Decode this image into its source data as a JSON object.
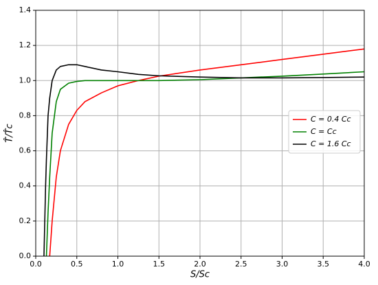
{
  "chart_data": {
    "type": "line",
    "xlabel": "S/Sc",
    "ylabel": "T̂/T̂c",
    "x": [
      0.1,
      0.12,
      0.13,
      0.15,
      0.17,
      0.2,
      0.25,
      0.3,
      0.4,
      0.5,
      0.6,
      0.8,
      1.0,
      1.25,
      1.5,
      2.0,
      2.5,
      3.0,
      3.5,
      4.0
    ],
    "series": [
      {
        "name": "C = 0.4 Cc",
        "color": "#ff0000",
        "values": [
          null,
          null,
          null,
          null,
          0,
          0.2,
          0.45,
          0.6,
          0.75,
          0.83,
          0.88,
          0.93,
          0.97,
          1.0,
          1.025,
          1.06,
          1.09,
          1.12,
          1.15,
          1.18
        ]
      },
      {
        "name": "C = Cc",
        "color": "#008000",
        "values": [
          null,
          null,
          0,
          0.25,
          0.45,
          0.7,
          0.88,
          0.95,
          0.985,
          0.995,
          1.0,
          1.0,
          1.0,
          1.0,
          1.0,
          1.005,
          1.015,
          1.025,
          1.037,
          1.05
        ]
      },
      {
        "name": "C = 1.6 Cc",
        "color": "#000000",
        "values": [
          0,
          0.4,
          0.55,
          0.8,
          0.9,
          1.0,
          1.06,
          1.08,
          1.09,
          1.09,
          1.08,
          1.06,
          1.05,
          1.035,
          1.027,
          1.02,
          1.015,
          1.015,
          1.017,
          1.02
        ]
      }
    ],
    "xlim": [
      0,
      4.0
    ],
    "ylim": [
      0,
      1.4
    ],
    "xticks": [
      {
        "value": 0,
        "label": "0.0"
      },
      {
        "value": 0.5,
        "label": "0.5"
      },
      {
        "value": 1.0,
        "label": "1.0"
      },
      {
        "value": 1.5,
        "label": "1.5"
      },
      {
        "value": 2.0,
        "label": "2.0"
      },
      {
        "value": 2.5,
        "label": "2.5"
      },
      {
        "value": 3.0,
        "label": "3.0"
      },
      {
        "value": 3.5,
        "label": "3.5"
      },
      {
        "value": 4.0,
        "label": "4.0"
      }
    ],
    "yticks": [
      {
        "value": 0,
        "label": "0.0"
      },
      {
        "value": 0.2,
        "label": "0.2"
      },
      {
        "value": 0.4,
        "label": "0.4"
      },
      {
        "value": 0.6,
        "label": "0.6"
      },
      {
        "value": 0.8,
        "label": "0.8"
      },
      {
        "value": 1.0,
        "label": "1.0"
      },
      {
        "value": 1.2,
        "label": "1.2"
      },
      {
        "value": 1.4,
        "label": "1.4"
      }
    ],
    "grid": true,
    "legend": "center right"
  }
}
